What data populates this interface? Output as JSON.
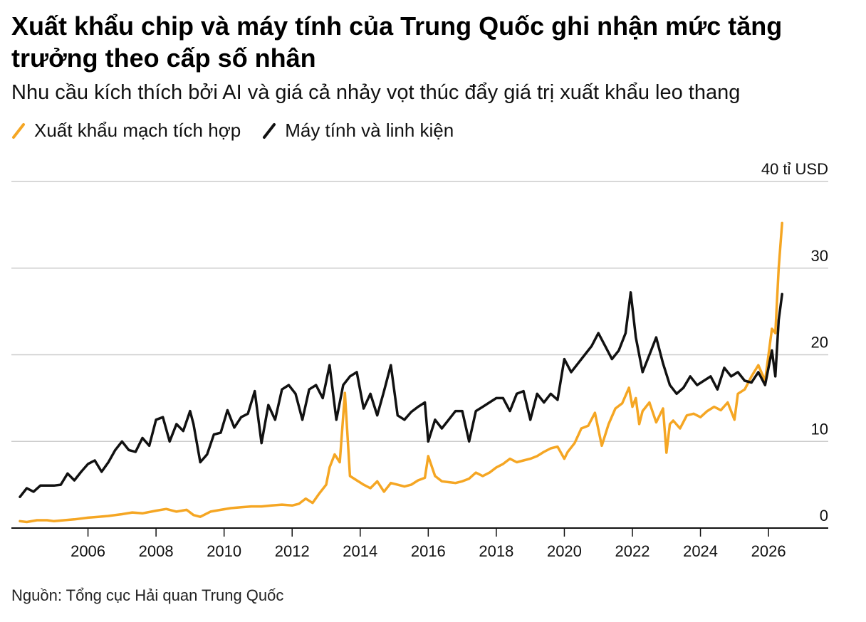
{
  "title": "Xuất khẩu chip và máy tính của Trung Quốc ghi nhận mức tăng trưởng theo cấp số nhân",
  "subtitle": "Nhu cầu kích thích bởi AI và giá cả nhảy vọt thúc đẩy giá trị xuất khẩu leo thang",
  "source": "Nguồn: Tổng cục Hải quan Trung Quốc",
  "colors": {
    "ic": "#f5a623",
    "computers": "#111111",
    "grid": "#cccccc",
    "axis": "#111111"
  },
  "chart_data": {
    "type": "line",
    "unit_label": "40 tỉ USD",
    "ylim": [
      0,
      40
    ],
    "xlim": [
      2004.0,
      2026.5
    ],
    "y_ticks": [
      0,
      10,
      20,
      30,
      40
    ],
    "y_tick_labels": [
      "0",
      "10",
      "20",
      "30",
      "40 tỉ USD"
    ],
    "x_ticks": [
      2006,
      2008,
      2010,
      2012,
      2014,
      2016,
      2018,
      2020,
      2022,
      2024,
      2026
    ],
    "x_tick_labels": [
      "2006",
      "2008",
      "2010",
      "2012",
      "2014",
      "2016",
      "2018",
      "2020",
      "2022",
      "2024",
      "2026"
    ],
    "grid": true,
    "legend_position": "top-left",
    "series": [
      {
        "name": "Xuất khẩu mạch tích hợp",
        "color": "#f5a623",
        "x": [
          2004.0,
          2004.2,
          2004.5,
          2004.8,
          2005.0,
          2005.3,
          2005.6,
          2006.0,
          2006.3,
          2006.6,
          2007.0,
          2007.3,
          2007.6,
          2008.0,
          2008.3,
          2008.6,
          2008.9,
          2009.1,
          2009.3,
          2009.6,
          2009.9,
          2010.2,
          2010.5,
          2010.8,
          2011.1,
          2011.4,
          2011.7,
          2012.0,
          2012.2,
          2012.4,
          2012.6,
          2012.8,
          2013.0,
          2013.1,
          2013.25,
          2013.4,
          2013.55,
          2013.7,
          2013.9,
          2014.1,
          2014.3,
          2014.5,
          2014.7,
          2014.9,
          2015.1,
          2015.3,
          2015.5,
          2015.7,
          2015.9,
          2016.0,
          2016.2,
          2016.4,
          2016.6,
          2016.8,
          2017.0,
          2017.2,
          2017.4,
          2017.6,
          2017.8,
          2018.0,
          2018.2,
          2018.4,
          2018.6,
          2018.8,
          2019.0,
          2019.2,
          2019.4,
          2019.6,
          2019.8,
          2020.0,
          2020.1,
          2020.3,
          2020.5,
          2020.7,
          2020.9,
          2021.1,
          2021.3,
          2021.5,
          2021.7,
          2021.9,
          2022.0,
          2022.1,
          2022.2,
          2022.3,
          2022.5,
          2022.7,
          2022.9,
          2023.0,
          2023.1,
          2023.2,
          2023.4,
          2023.6,
          2023.8,
          2024.0,
          2024.2,
          2024.4,
          2024.6,
          2024.8,
          2025.0,
          2025.1,
          2025.3,
          2025.5,
          2025.7,
          2025.9,
          2026.0,
          2026.1,
          2026.2,
          2026.3,
          2026.4
        ],
        "values": [
          0.8,
          0.7,
          0.9,
          0.9,
          0.8,
          0.9,
          1.0,
          1.2,
          1.3,
          1.4,
          1.6,
          1.8,
          1.7,
          2.0,
          2.2,
          1.9,
          2.1,
          1.5,
          1.3,
          1.9,
          2.1,
          2.3,
          2.4,
          2.5,
          2.5,
          2.6,
          2.7,
          2.6,
          2.8,
          3.4,
          2.9,
          4.0,
          5.0,
          7.0,
          8.5,
          7.6,
          15.6,
          6.0,
          5.5,
          5.0,
          4.6,
          5.4,
          4.2,
          5.2,
          5.0,
          4.8,
          5.0,
          5.5,
          5.8,
          8.3,
          6.0,
          5.4,
          5.3,
          5.2,
          5.4,
          5.7,
          6.4,
          6.0,
          6.4,
          7.0,
          7.4,
          8.0,
          7.6,
          7.8,
          8.0,
          8.3,
          8.8,
          9.2,
          9.4,
          8.0,
          8.8,
          9.8,
          11.5,
          11.8,
          13.3,
          9.5,
          12.0,
          13.8,
          14.4,
          16.2,
          14.0,
          15.0,
          12.0,
          13.5,
          14.5,
          12.2,
          13.8,
          8.7,
          12.0,
          12.4,
          11.5,
          13.0,
          13.2,
          12.8,
          13.5,
          14.0,
          13.6,
          14.5,
          12.5,
          15.5,
          16.0,
          17.5,
          18.8,
          17.0,
          20.0,
          23.0,
          22.5,
          30.0,
          35.2
        ]
      },
      {
        "name": "Máy tính và linh kiện",
        "color": "#111111",
        "x": [
          2004.0,
          2004.2,
          2004.4,
          2004.6,
          2004.8,
          2005.0,
          2005.2,
          2005.4,
          2005.6,
          2005.8,
          2006.0,
          2006.2,
          2006.4,
          2006.6,
          2006.8,
          2007.0,
          2007.2,
          2007.4,
          2007.6,
          2007.8,
          2008.0,
          2008.2,
          2008.4,
          2008.6,
          2008.8,
          2009.0,
          2009.1,
          2009.3,
          2009.5,
          2009.7,
          2009.9,
          2010.1,
          2010.3,
          2010.5,
          2010.7,
          2010.9,
          2011.1,
          2011.3,
          2011.5,
          2011.7,
          2011.9,
          2012.1,
          2012.3,
          2012.5,
          2012.7,
          2012.9,
          2013.1,
          2013.3,
          2013.5,
          2013.7,
          2013.9,
          2014.1,
          2014.3,
          2014.5,
          2014.7,
          2014.9,
          2015.1,
          2015.3,
          2015.5,
          2015.7,
          2015.9,
          2016.0,
          2016.2,
          2016.4,
          2016.6,
          2016.8,
          2017.0,
          2017.2,
          2017.4,
          2017.6,
          2017.8,
          2018.0,
          2018.2,
          2018.4,
          2018.6,
          2018.8,
          2019.0,
          2019.2,
          2019.4,
          2019.6,
          2019.8,
          2020.0,
          2020.2,
          2020.4,
          2020.6,
          2020.8,
          2021.0,
          2021.2,
          2021.4,
          2021.6,
          2021.8,
          2021.95,
          2022.1,
          2022.3,
          2022.5,
          2022.7,
          2022.9,
          2023.1,
          2023.3,
          2023.5,
          2023.7,
          2023.9,
          2024.1,
          2024.3,
          2024.5,
          2024.7,
          2024.9,
          2025.1,
          2025.3,
          2025.5,
          2025.7,
          2025.9,
          2026.1,
          2026.2,
          2026.3,
          2026.4
        ],
        "values": [
          3.6,
          4.6,
          4.2,
          4.9,
          4.9,
          4.9,
          5.0,
          6.3,
          5.5,
          6.5,
          7.4,
          7.8,
          6.5,
          7.6,
          9.0,
          10.0,
          9.0,
          8.8,
          10.4,
          9.5,
          12.5,
          12.8,
          10.0,
          12.0,
          11.2,
          13.5,
          12.0,
          7.6,
          8.5,
          10.8,
          11.0,
          13.6,
          11.6,
          12.8,
          13.2,
          15.8,
          9.8,
          14.2,
          12.5,
          16.0,
          16.5,
          15.5,
          12.5,
          16.0,
          16.5,
          15.0,
          18.8,
          12.5,
          16.5,
          17.5,
          18.0,
          13.8,
          15.5,
          13.0,
          15.8,
          18.8,
          13.0,
          12.5,
          13.4,
          14.0,
          14.5,
          10.0,
          12.5,
          11.5,
          12.5,
          13.5,
          13.5,
          10.0,
          13.5,
          14.0,
          14.5,
          15.0,
          15.0,
          13.5,
          15.5,
          15.8,
          12.5,
          15.5,
          14.5,
          15.5,
          14.8,
          19.5,
          18.0,
          19.0,
          20.0,
          21.0,
          22.5,
          21.0,
          19.5,
          20.5,
          22.5,
          27.2,
          22.0,
          18.0,
          20.0,
          22.0,
          19.0,
          16.5,
          15.5,
          16.2,
          17.5,
          16.5,
          17.0,
          17.5,
          16.0,
          18.5,
          17.5,
          18.0,
          17.0,
          16.8,
          18.0,
          16.5,
          20.5,
          17.5,
          24.0,
          27.0
        ]
      }
    ]
  }
}
